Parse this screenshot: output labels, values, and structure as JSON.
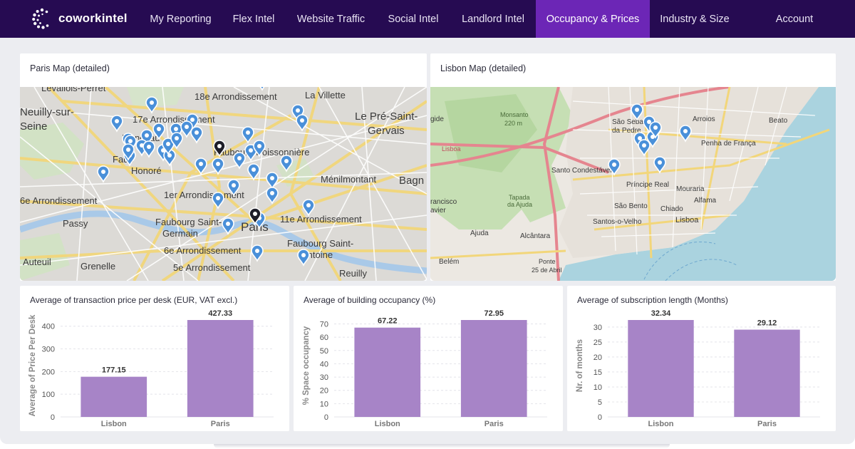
{
  "brand": {
    "name": "coworkintel",
    "logo_icon": "cowork-c-icon"
  },
  "nav": {
    "items": [
      {
        "label": "My Reporting"
      },
      {
        "label": "Flex Intel"
      },
      {
        "label": "Website Traffic"
      },
      {
        "label": "Social Intel"
      },
      {
        "label": "Landlord Intel"
      },
      {
        "label": "Occupancy & Prices",
        "active": true
      },
      {
        "label": "Industry & Size"
      }
    ],
    "account_label": "Account"
  },
  "colors": {
    "nav_bg": "#260b52",
    "nav_active": "#6c26b6",
    "bar": "#a784c7",
    "marker": "#4a90d9"
  },
  "paris_map": {
    "title": "Paris Map (detailed)",
    "place_labels": [
      "Levallois-Perret",
      "18e Arrondissement",
      "La Villette",
      "Neuilly-sur-",
      "Seine",
      "17e Arrondissement",
      "Le Pré-Saint-",
      "Gervais",
      "Monceau",
      "Faubourg Poissonnière",
      "Faub",
      "Honoré",
      "Bagn",
      "Ménilmontant",
      "1er Arrondissement",
      "6e Arrondissement",
      "Passy",
      "Faubourg Saint-",
      "Germain",
      "11e Arrondissement",
      "Paris",
      "Faubourg Saint-",
      "Antoine",
      "6e Arrondissement",
      "5e Arrondissement",
      "Auteuil",
      "Grenelle",
      "Reuilly"
    ]
  },
  "lisbon_map": {
    "title": "Lisbon Map (detailed)",
    "place_labels": [
      "Monsanto",
      "220 m",
      "gide",
      "Lisboa",
      "São Sebas",
      "da Pedre",
      "Arroios",
      "Beato",
      "Penha de França",
      "Santo Condestável",
      "Príncipe Real",
      "Mouraria",
      "Tapada",
      "da Ajuda",
      "São Bento",
      "Chiado",
      "Alfama",
      "rancisco",
      "avier",
      "Santos-o-Velho",
      "Lisboa",
      "Ajuda",
      "Alcântara",
      "Belém",
      "Ponte",
      "25 de Abril"
    ]
  },
  "charts": {
    "price": {
      "title": "Average of transaction price per desk (EUR, VAT excl.)",
      "chart_data": {
        "type": "bar",
        "categories": [
          "Lisbon",
          "Paris"
        ],
        "values": [
          177.15,
          427.33
        ],
        "value_labels": [
          "177.15",
          "427.33"
        ],
        "ylabel": "Average of Price Per Desk",
        "yticks": [
          0,
          100,
          200,
          300,
          400
        ],
        "ylim": [
          0,
          427.33
        ],
        "grid": true
      }
    },
    "occupancy": {
      "title": "Average of building occupancy (%)",
      "chart_data": {
        "type": "bar",
        "categories": [
          "Lisbon",
          "Paris"
        ],
        "values": [
          67.22,
          72.95
        ],
        "value_labels": [
          "67.22",
          "72.95"
        ],
        "ylabel": "% Space occupancy",
        "yticks": [
          0,
          10,
          20,
          30,
          40,
          50,
          60,
          70
        ],
        "ylim": [
          0,
          72.95
        ],
        "grid": true
      }
    },
    "subscription": {
      "title": "Average of subscription length (Months)",
      "chart_data": {
        "type": "bar",
        "categories": [
          "Lisbon",
          "Paris"
        ],
        "values": [
          32.34,
          29.12
        ],
        "value_labels": [
          "32.34",
          "29.12"
        ],
        "ylabel": "Nr. of months",
        "yticks": [
          0,
          5,
          10,
          15,
          20,
          25,
          30
        ],
        "ylim": [
          0,
          32.34
        ],
        "grid": true
      }
    }
  }
}
